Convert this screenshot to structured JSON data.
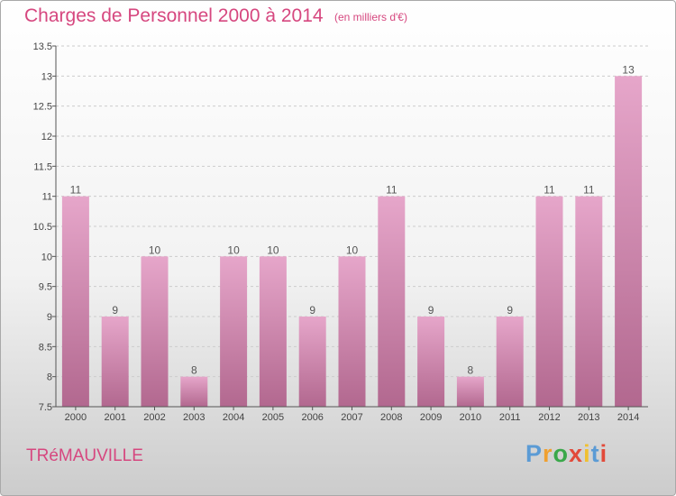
{
  "header": {
    "title": "Charges de Personnel 2000 à 2014",
    "unit": "(en milliers d'€)"
  },
  "footer": {
    "place": "TRéMAUVILLE",
    "logo_letters": [
      "P",
      "r",
      "o",
      "x",
      "i",
      "t",
      "i"
    ],
    "logo_colors": [
      "#5b9bd5",
      "#f0a030",
      "#3aa84a",
      "#e24a3a",
      "#f0c030",
      "#5b9bd5",
      "#e24a3a"
    ]
  },
  "colors": {
    "title": "#d6477f",
    "bar_top": "#e6a6ca",
    "bar_bottom": "#b2688f",
    "axis": "#555555",
    "grid": "#cccccc"
  },
  "chart_data": {
    "type": "bar",
    "title": "Charges de Personnel 2000 à 2014",
    "subtitle": "(en milliers d'€)",
    "xlabel": "",
    "ylabel": "",
    "categories": [
      "2000",
      "2001",
      "2002",
      "2003",
      "2004",
      "2005",
      "2006",
      "2007",
      "2008",
      "2009",
      "2010",
      "2011",
      "2012",
      "2013",
      "2014"
    ],
    "values": [
      11,
      9,
      10,
      8,
      10,
      10,
      9,
      10,
      11,
      9,
      8,
      9,
      11,
      11,
      13
    ],
    "ylim": [
      7.5,
      13.5
    ],
    "yticks": [
      7.5,
      8,
      8.5,
      9,
      9.5,
      10,
      10.5,
      11,
      11.5,
      12,
      12.5,
      13,
      13.5
    ],
    "grid": "horizontal-dashed",
    "data_labels": true
  }
}
